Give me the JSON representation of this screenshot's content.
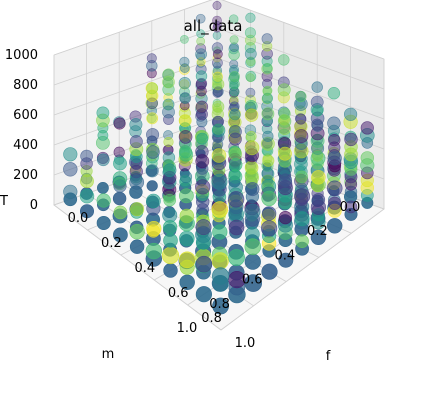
{
  "chart_data": {
    "type": "scatter",
    "projection": "3d",
    "title": "all_data",
    "xlabel": "m",
    "ylabel": "f",
    "zlabel": "T",
    "xlim": [
      0.0,
      1.0
    ],
    "ylim": [
      0.0,
      1.0
    ],
    "zlim": [
      0,
      1000
    ],
    "xticks": [
      "0.0",
      "0.2",
      "0.4",
      "0.6",
      "0.8",
      "1.0"
    ],
    "yticks": [
      "0.0",
      "0.2",
      "0.4",
      "0.6",
      "0.8",
      "1.0"
    ],
    "zticks": [
      "0",
      "200",
      "400",
      "600",
      "800",
      "1000"
    ],
    "grid": true,
    "colormap": "viridis",
    "grid_values": [
      0.0,
      0.1,
      0.2,
      0.3,
      0.4,
      0.5,
      0.6,
      0.7,
      0.8,
      0.9
    ],
    "z_levels": [
      0,
      50,
      100,
      150,
      200,
      250,
      300,
      350,
      400,
      450,
      500,
      550,
      600,
      650,
      700,
      750,
      800,
      850,
      900,
      950
    ],
    "note_visibility": "points with m + f > 1.0 are present only at larger T; T max grows as f decreases"
  }
}
